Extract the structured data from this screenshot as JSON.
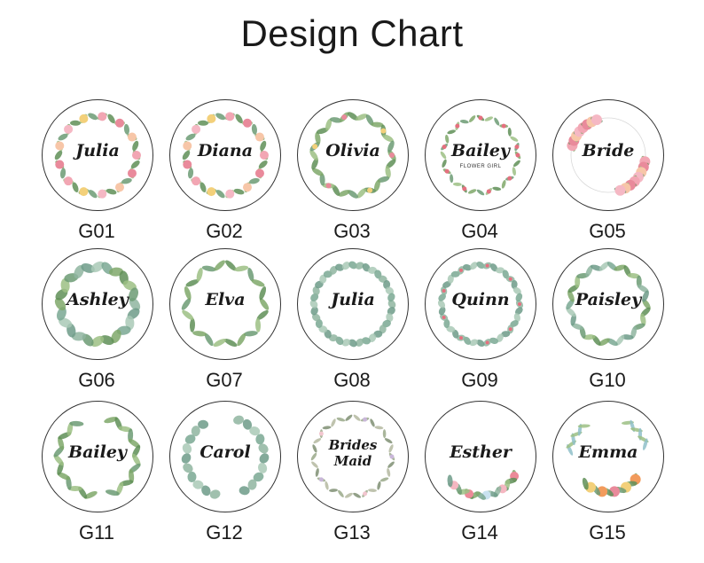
{
  "title": "Design Chart",
  "designs": [
    {
      "code": "G01",
      "name": "Julia",
      "style": "pink-floral-wreath"
    },
    {
      "code": "G02",
      "name": "Diana",
      "style": "pink-floral-wreath"
    },
    {
      "code": "G03",
      "name": "Olivia",
      "style": "green-leaf-wreath-flowers"
    },
    {
      "code": "G04",
      "name": "Bailey",
      "subtitle": "FLOWER GIRL",
      "style": "small-pink-floral-wreath"
    },
    {
      "code": "G05",
      "name": "Bride",
      "style": "rose-corner-wreath"
    },
    {
      "code": "G06",
      "name": "Ashley",
      "style": "eucalyptus-wreath"
    },
    {
      "code": "G07",
      "name": "Elva",
      "style": "green-leaf-wreath"
    },
    {
      "code": "G08",
      "name": "Julia",
      "style": "eucalyptus-ring"
    },
    {
      "code": "G09",
      "name": "Quinn",
      "style": "eucalyptus-ring-pink-buds"
    },
    {
      "code": "G10",
      "name": "Paisley",
      "style": "green-leaf-ring"
    },
    {
      "code": "G11",
      "name": "Bailey",
      "style": "laurel-wreath"
    },
    {
      "code": "G12",
      "name": "Carol",
      "style": "eucalyptus-laurel"
    },
    {
      "code": "G13",
      "name": "Brides Maid",
      "style": "thin-floral-wreath"
    },
    {
      "code": "G14",
      "name": "Esther",
      "style": "bottom-floral-garland"
    },
    {
      "code": "G15",
      "name": "Emma",
      "style": "bottom-floral-bouquet"
    }
  ]
}
